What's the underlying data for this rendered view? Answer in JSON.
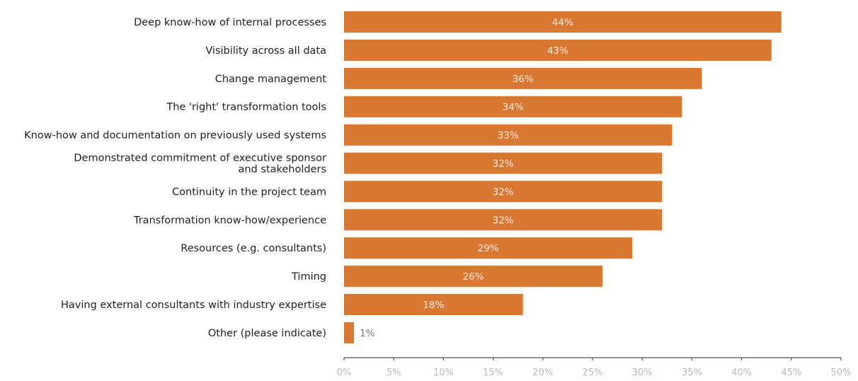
{
  "chart_data": {
    "type": "bar",
    "orientation": "horizontal",
    "title": "",
    "xlabel": "",
    "ylabel": "",
    "categories": [
      "Deep know-how of internal processes",
      "Visibility across all data",
      "Change management",
      "The 'right' transformation tools",
      "Know-how and documentation on previously used systems",
      "Demonstrated commitment of executive sponsor\nand stakeholders",
      "Continuity in the project team",
      "Transformation know-how/experience",
      "Resources (e.g. consultants)",
      "Timing",
      "Having external consultants with industry expertise",
      "Other (please indicate)"
    ],
    "values": [
      44,
      43,
      36,
      34,
      33,
      32,
      32,
      32,
      29,
      26,
      18,
      1
    ],
    "data_labels": [
      "44%",
      "43%",
      "36%",
      "34%",
      "33%",
      "32%",
      "32%",
      "32%",
      "29%",
      "26%",
      "18%",
      "1%"
    ],
    "xlim": [
      0,
      50
    ],
    "x_ticks": [
      0,
      5,
      10,
      15,
      20,
      25,
      30,
      35,
      40,
      45,
      50
    ],
    "x_tick_labels": [
      "0%",
      "5%",
      "10%",
      "15%",
      "20%",
      "25%",
      "30%",
      "35%",
      "40%",
      "45%",
      "50%"
    ],
    "grid": false,
    "legend": "none",
    "bar_color": "#d87832"
  }
}
